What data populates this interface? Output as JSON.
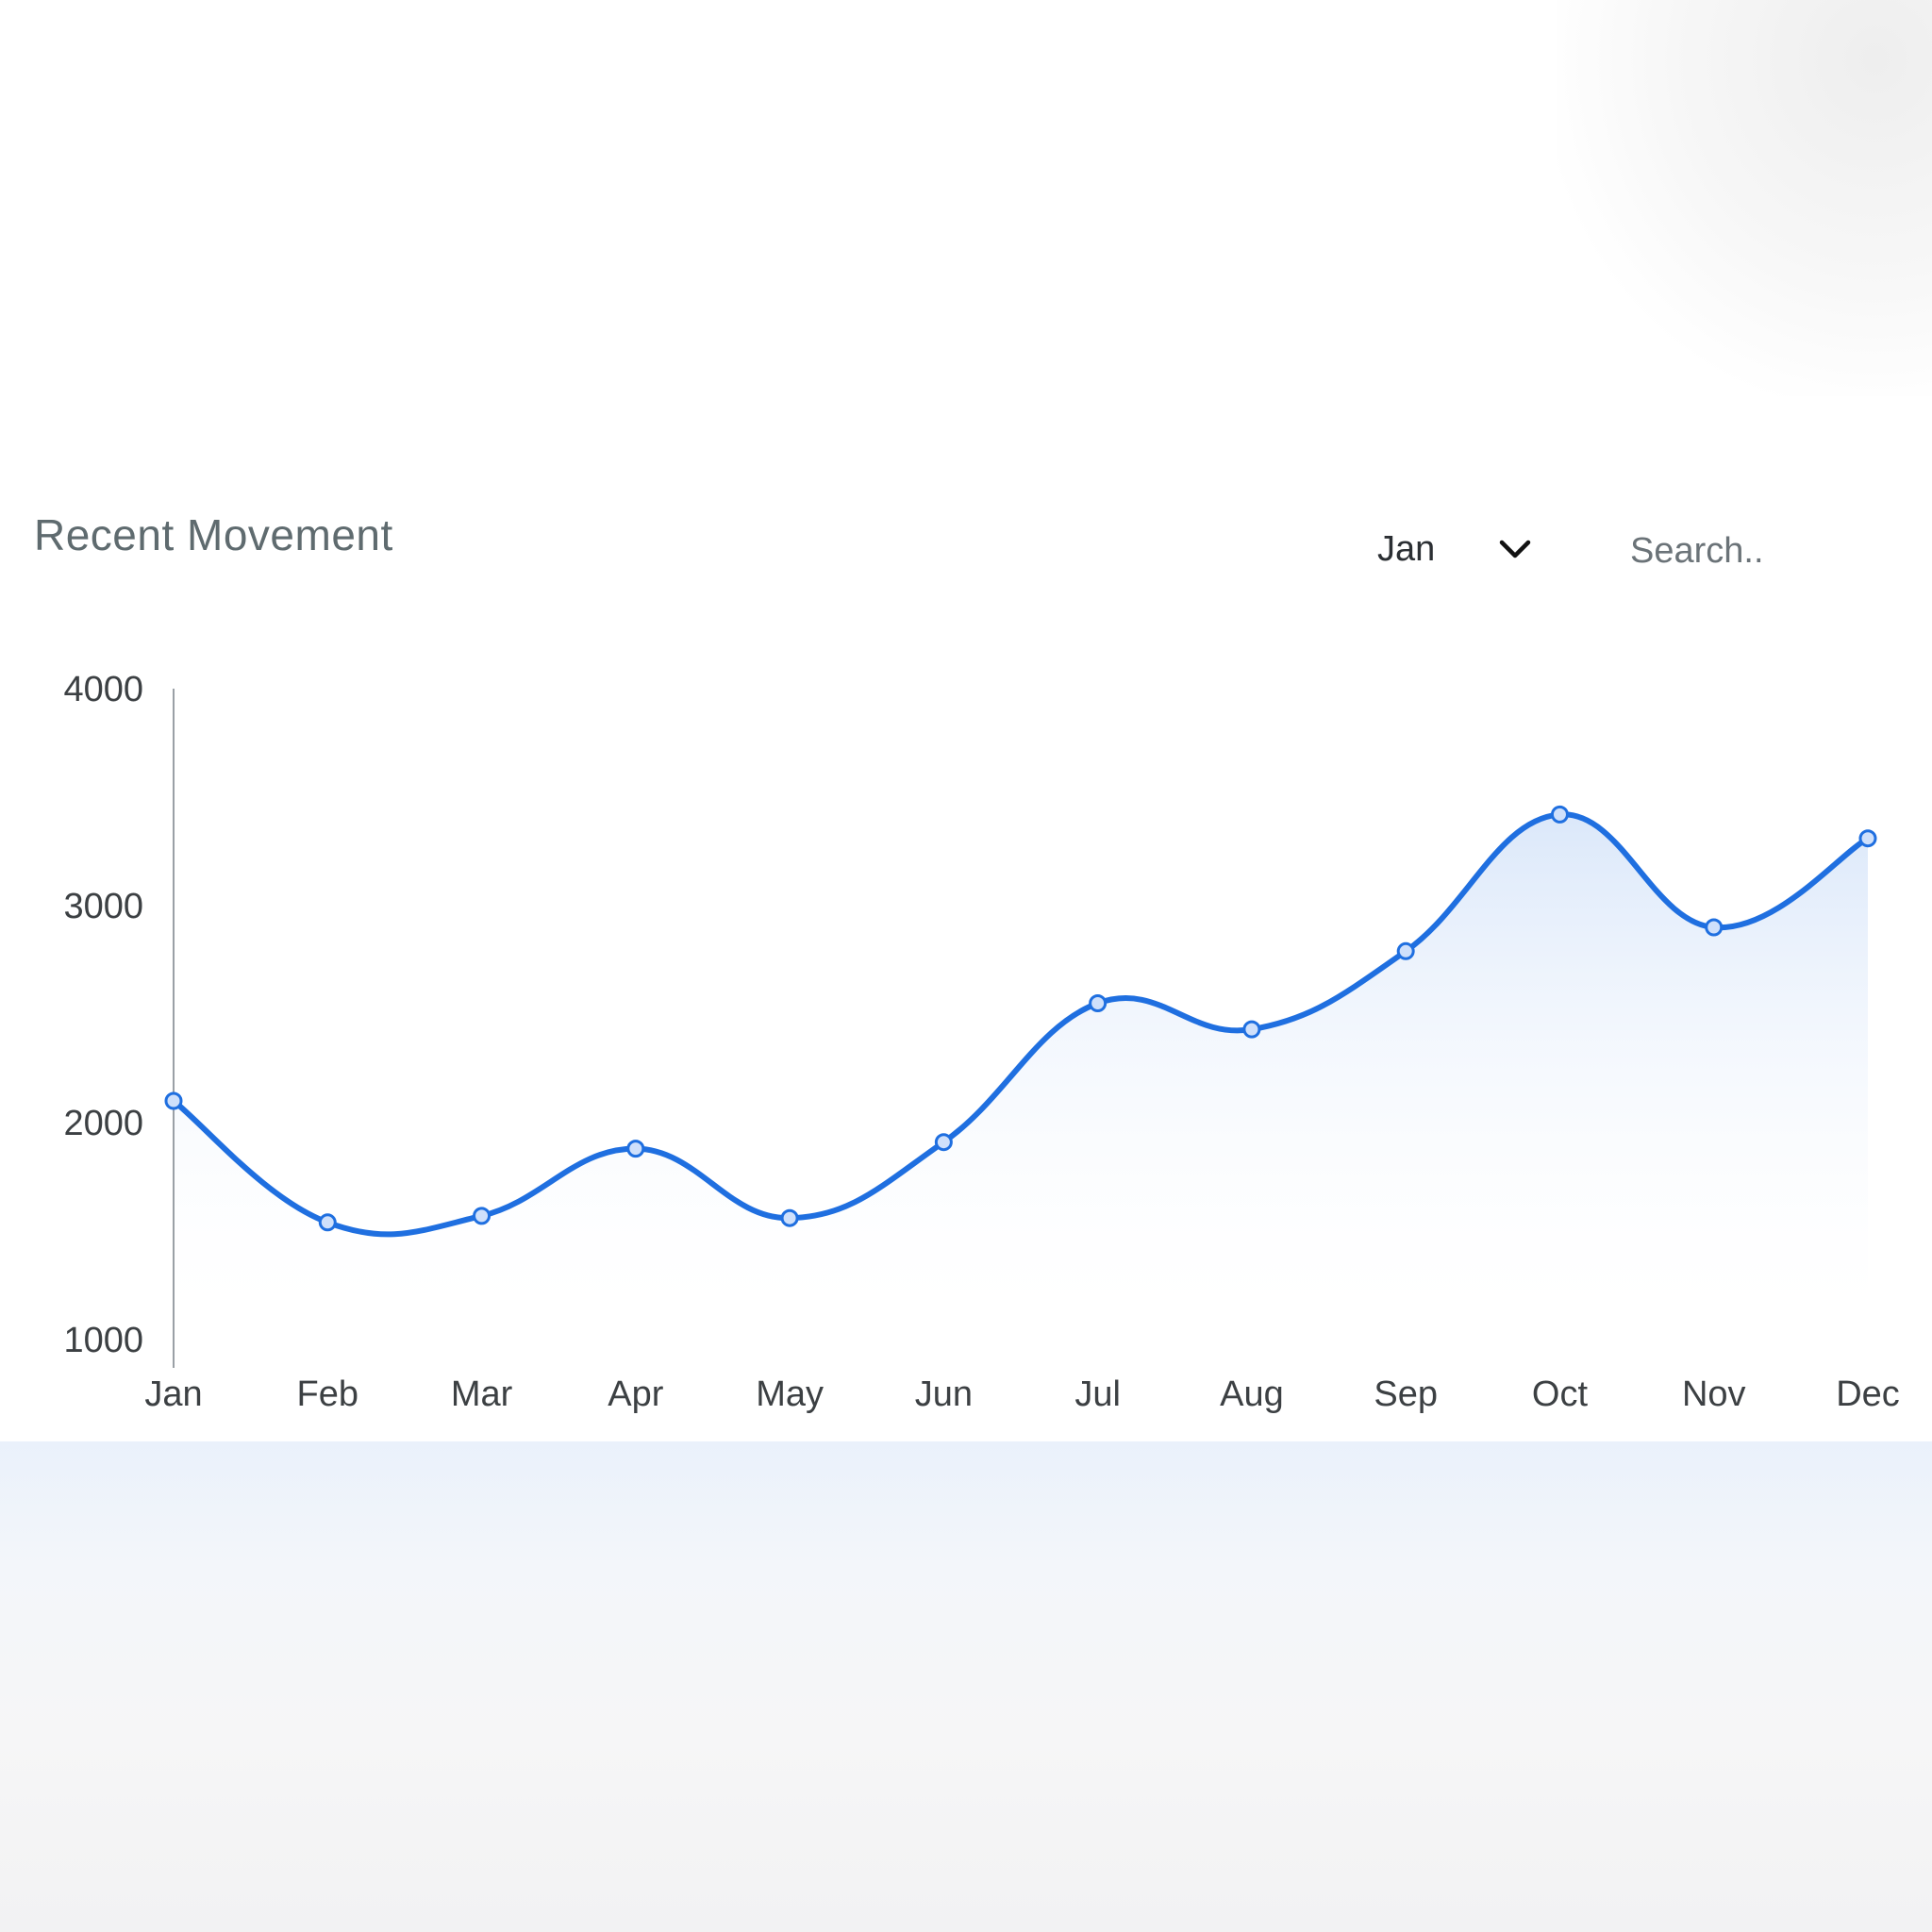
{
  "header": {
    "title": "Recent Movement"
  },
  "month_select": {
    "value": "Jan",
    "icon": "chevron-down-icon"
  },
  "search": {
    "placeholder": "Search.."
  },
  "colors": {
    "line": "#1f6fe0",
    "marker_fill": "#cfe0fb",
    "area_top": "#cfe0f8",
    "axis": "#9aa0a6",
    "tick_text": "#3c4043"
  },
  "chart_data": {
    "type": "line",
    "smooth": true,
    "area_fill": true,
    "categories": [
      "Jan",
      "Feb",
      "Mar",
      "Apr",
      "May",
      "Jun",
      "Jul",
      "Aug",
      "Sep",
      "Oct",
      "Nov",
      "Dec"
    ],
    "values": [
      2100,
      1540,
      1570,
      1880,
      1560,
      1910,
      2550,
      2430,
      2790,
      3420,
      2900,
      3310
    ],
    "yticks": [
      1000,
      2000,
      3000,
      4000
    ],
    "ylim": [
      1000,
      4000
    ],
    "grid": false,
    "legend": "none"
  }
}
